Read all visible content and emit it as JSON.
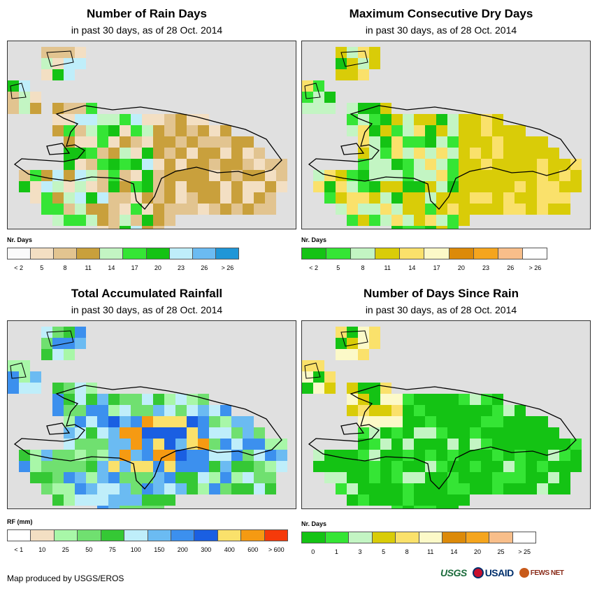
{
  "credit": "Map produced by USGS/EROS",
  "logos": {
    "usgs": "USGS",
    "usaid": "USAID",
    "fews": "FEWS NET"
  },
  "icons": [
    "usgs-logo-icon",
    "usaid-seal-icon",
    "fews-net-logo-icon"
  ],
  "panels": [
    {
      "id": "rain-days",
      "title": "Number of Rain Days",
      "subtitle": "in past 30 days, as of 28 Oct. 2014",
      "legend_unit": "Nr. Days",
      "legend_colors": [
        "#fafafa",
        "#f3dfc3",
        "#e2c490",
        "#c9a03c",
        "#c3f5c3",
        "#35e535",
        "#14c314",
        "#bfeefa",
        "#6bbbf2",
        "#1f96d7"
      ],
      "legend_ticks": [
        "< 2",
        "5",
        "8",
        "11",
        "14",
        "17",
        "20",
        "23",
        "26",
        "> 26"
      ]
    },
    {
      "id": "max-dry-days",
      "title": "Maximum Consecutive Dry Days",
      "subtitle": "in past 30 days, as of 28 Oct. 2014",
      "legend_unit": "Nr. Days",
      "legend_colors": [
        "#14c314",
        "#35e535",
        "#c3f5c3",
        "#d9cc08",
        "#fae16b",
        "#fcf9c8",
        "#dc8a09",
        "#f5a51e",
        "#f8be8a",
        "#ffffff"
      ],
      "legend_ticks": [
        "< 2",
        "5",
        "8",
        "11",
        "14",
        "17",
        "20",
        "23",
        "26",
        "> 26"
      ]
    },
    {
      "id": "total-rainfall",
      "title": "Total Accumulated Rainfall",
      "subtitle": "in past 30 days, as of 28 Oct. 2014",
      "legend_unit": "RF (mm)",
      "legend_colors": [
        "#ffffff",
        "#f3dfc3",
        "#a8f7a8",
        "#70e070",
        "#35c835",
        "#bfeefa",
        "#6bbbf2",
        "#3c90ee",
        "#1a5fe2",
        "#fae16b",
        "#f59a12",
        "#f53a0a"
      ],
      "legend_ticks": [
        "< 1",
        "10",
        "25",
        "50",
        "75",
        "100",
        "150",
        "200",
        "300",
        "400",
        "600",
        "> 600"
      ]
    },
    {
      "id": "days-since-rain",
      "title": "Number of Days Since Rain",
      "subtitle": "in past 30 days, as of 28 Oct. 2014",
      "legend_unit": "Nr. Days",
      "legend_colors": [
        "#14c314",
        "#35e535",
        "#c3f5c3",
        "#d9cc08",
        "#fae16b",
        "#fcf9c8",
        "#dc8a09",
        "#f5a51e",
        "#f8be8a",
        "#ffffff"
      ],
      "legend_ticks": [
        "0",
        "1",
        "3",
        "5",
        "8",
        "11",
        "14",
        "20",
        "25",
        "> 25"
      ]
    }
  ]
}
